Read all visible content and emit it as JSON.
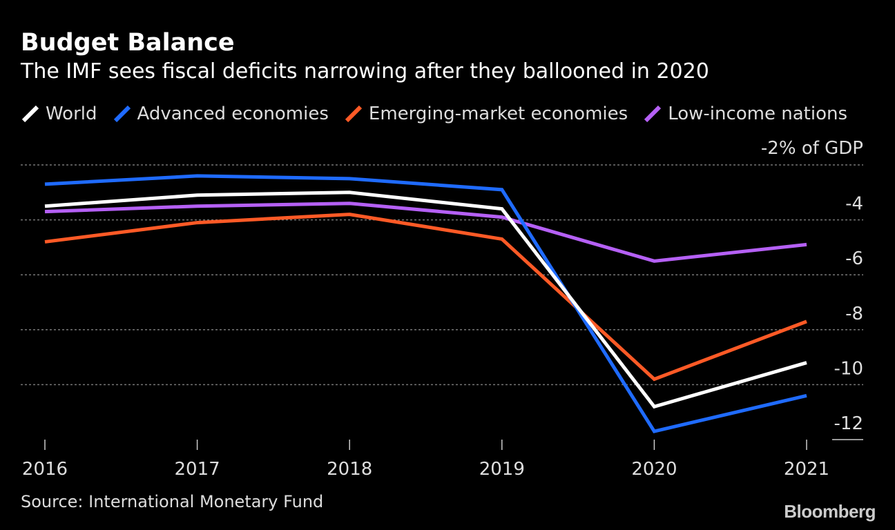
{
  "title": "Budget Balance",
  "subtitle": "The IMF sees fiscal deficits narrowing after they ballooned in 2020",
  "source": "Source: International Monetary Fund",
  "logo": "Bloomberg",
  "chart_data": {
    "type": "line",
    "title": "Budget Balance",
    "x": [
      "2016",
      "2017",
      "2018",
      "2019",
      "2020",
      "2021"
    ],
    "yticks": [
      -2,
      -4,
      -6,
      -8,
      -10,
      -12
    ],
    "ytick_labels": [
      "-2% of GDP",
      "-4",
      "-6",
      "-8",
      "-10",
      "-12"
    ],
    "ylim": [
      -12,
      -2
    ],
    "ylabel": "% of GDP",
    "grid": true,
    "legend": "top",
    "series": [
      {
        "name": "World",
        "color": "#ffffff",
        "values": [
          -3.5,
          -3.1,
          -3.0,
          -3.6,
          -10.8,
          -9.2
        ]
      },
      {
        "name": "Advanced economies",
        "color": "#1f6bff",
        "values": [
          -2.7,
          -2.4,
          -2.5,
          -2.9,
          -11.7,
          -10.4
        ]
      },
      {
        "name": "Emerging-market economies",
        "color": "#ff5a26",
        "values": [
          -4.8,
          -4.1,
          -3.8,
          -4.7,
          -9.8,
          -7.7
        ]
      },
      {
        "name": "Low-income nations",
        "color": "#b560f5",
        "values": [
          -3.7,
          -3.5,
          -3.4,
          -3.9,
          -5.5,
          -4.9
        ]
      }
    ]
  }
}
